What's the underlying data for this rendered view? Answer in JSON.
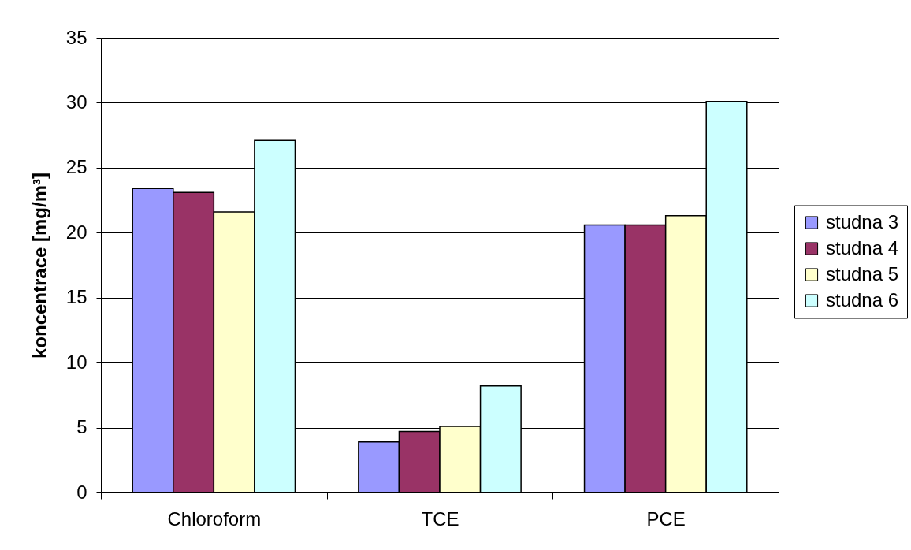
{
  "chart_data": {
    "type": "bar",
    "ylabel": "koncentrace [mg/m³]",
    "categories": [
      "Chloroform",
      "TCE",
      "PCE"
    ],
    "series": [
      {
        "name": "studna 3",
        "color": "#9999ff",
        "values": [
          23.4,
          3.9,
          20.6
        ]
      },
      {
        "name": "studna 4",
        "color": "#993366",
        "values": [
          23.1,
          4.7,
          20.6
        ]
      },
      {
        "name": "studna 5",
        "color": "#ffffcc",
        "values": [
          21.6,
          5.1,
          21.3
        ]
      },
      {
        "name": "studna 6",
        "color": "#ccffff",
        "values": [
          27.1,
          8.2,
          30.1
        ]
      }
    ],
    "ylim": [
      0,
      35
    ],
    "yticks": [
      0,
      5,
      10,
      15,
      20,
      25,
      30,
      35
    ],
    "grid": "y",
    "legend": "right"
  }
}
